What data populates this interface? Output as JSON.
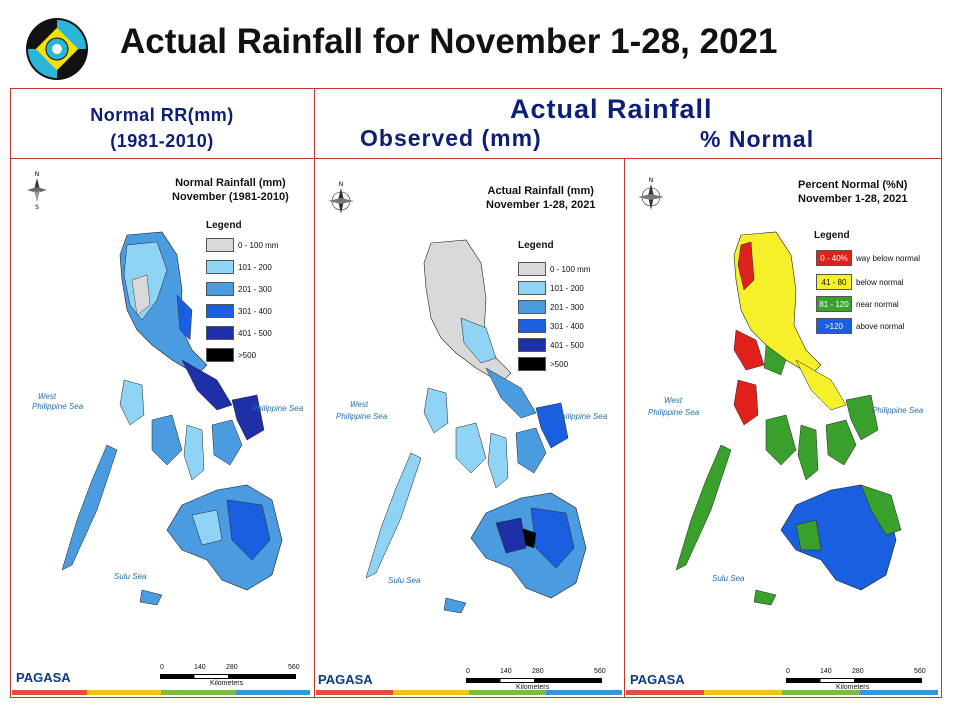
{
  "header": {
    "title": "Actual Rainfall for November 1-28, 2021"
  },
  "columns": {
    "normal_header_line1": "Normal RR(mm)",
    "normal_header_line2": "(1981-2010)",
    "actual_header": "Actual Rainfall",
    "observed_header": "Observed (mm)",
    "percent_header": "% Normal"
  },
  "maps": [
    {
      "title_line1": "Normal Rainfall (mm)",
      "title_line2": "November (1981-2010)",
      "legend_title": "Legend",
      "legend": [
        {
          "label": "0 - 100 mm",
          "color": "#d9d9d9"
        },
        {
          "label": "101 - 200",
          "color": "#8fd3f5"
        },
        {
          "label": "201 - 300",
          "color": "#4a9be0"
        },
        {
          "label": "301 - 400",
          "color": "#1a5fe0"
        },
        {
          "label": "401 - 500",
          "color": "#1f2fa8"
        },
        {
          "label": ">500",
          "color": "#000000"
        }
      ],
      "sea_west": "West",
      "sea_west2": "Philippine Sea",
      "sea_east": "Philippine Sea",
      "sea_south": "Sulu Sea",
      "scale_ticks": [
        "0",
        "140",
        "280",
        "560"
      ],
      "scale_unit": "Kilometers",
      "brand": "PAGASA"
    },
    {
      "title_line1": "Actual Rainfall (mm)",
      "title_line2": "November 1-28, 2021",
      "legend_title": "Legend",
      "legend": [
        {
          "label": "0 - 100 mm",
          "color": "#d9d9d9"
        },
        {
          "label": "101 - 200",
          "color": "#8fd3f5"
        },
        {
          "label": "201 - 300",
          "color": "#4a9be0"
        },
        {
          "label": "301 - 400",
          "color": "#1a5fe0"
        },
        {
          "label": "401 - 500",
          "color": "#1f2fa8"
        },
        {
          "label": ">500",
          "color": "#000000"
        }
      ],
      "sea_west": "West",
      "sea_west2": "Philippine Sea",
      "sea_east": "Philippine Sea",
      "sea_south": "Sulu Sea",
      "scale_ticks": [
        "0",
        "140",
        "280",
        "560"
      ],
      "scale_unit": "Kilometers",
      "brand": "PAGASA"
    },
    {
      "title_line1": "Percent Normal (%N)",
      "title_line2": "November 1-28, 2021",
      "legend_title": "Legend",
      "legend": [
        {
          "range": "0 - 40%",
          "label": "way below normal",
          "color": "#e0201b"
        },
        {
          "range": "41 - 80",
          "label": "below normal",
          "color": "#f5f02a"
        },
        {
          "range": "81 - 120",
          "label": "near normal",
          "color": "#3aa02c"
        },
        {
          "range": ">120",
          "label": "above normal",
          "color": "#1a5fe0"
        }
      ],
      "sea_west": "West",
      "sea_west2": "Philippine Sea",
      "sea_east": "Philippine Sea",
      "sea_south": "Sulu Sea",
      "scale_ticks": [
        "0",
        "140",
        "280",
        "560"
      ],
      "scale_unit": "Kilometers",
      "brand": "PAGASA"
    }
  ],
  "colors": {
    "frame": "#c0392b",
    "header_text": "#0b1f7a",
    "bottom_bar": [
      "#e74c3c",
      "#f1c40f",
      "#7dbb42",
      "#3498db"
    ]
  }
}
